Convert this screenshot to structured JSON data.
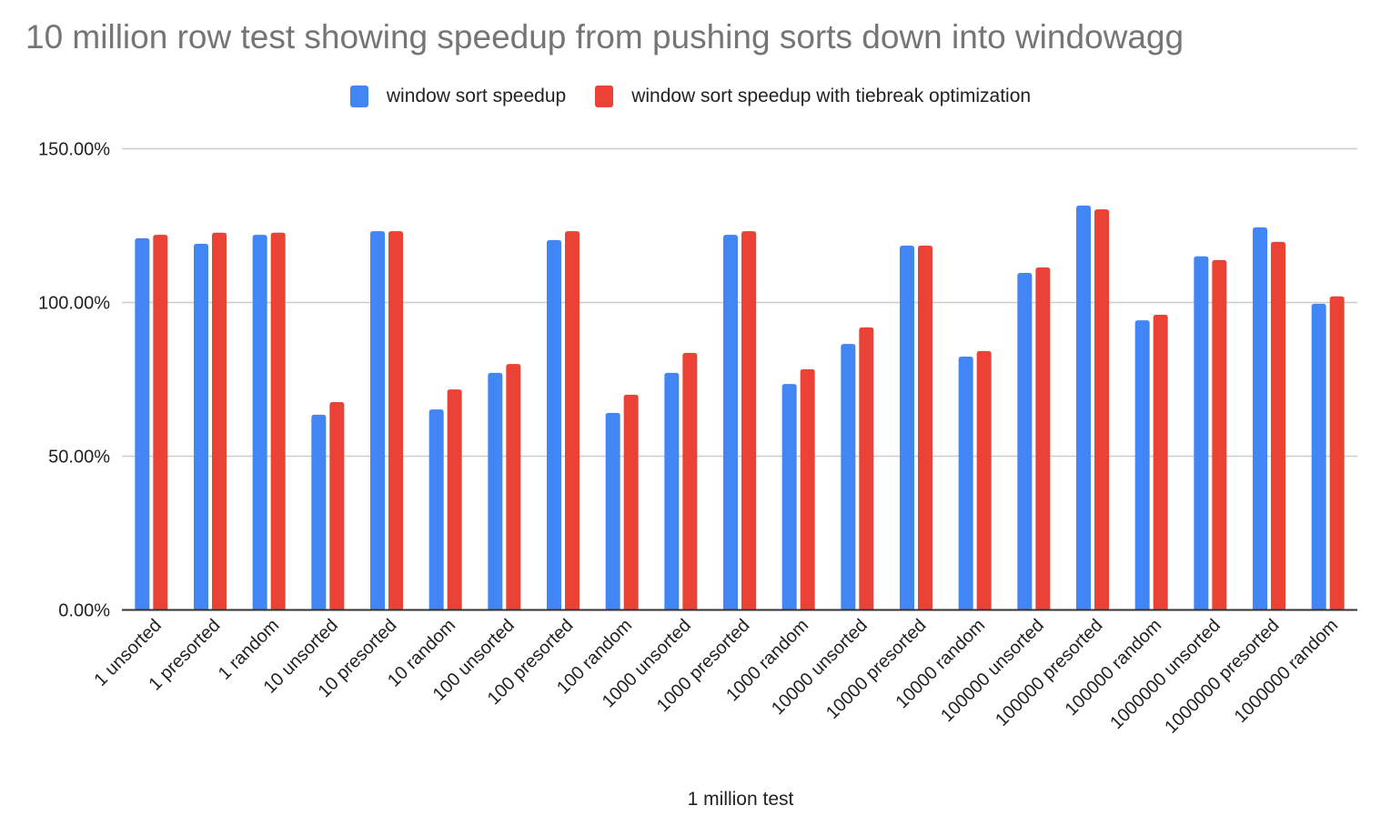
{
  "chart_data": {
    "type": "bar",
    "title": "10 million row test showing speedup from pushing sorts down into windowagg",
    "xlabel": "1 million test",
    "ylabel": "",
    "ylim": [
      0,
      150
    ],
    "yticks": [
      0,
      50,
      100,
      150
    ],
    "ytick_labels": [
      "0.00%",
      "50.00%",
      "100.00%",
      "150.00%"
    ],
    "grid": true,
    "legend_position": "top",
    "categories": [
      "1 unsorted",
      "1 presorted",
      "1 random",
      "10 unsorted",
      "10 presorted",
      "10 random",
      "100 unsorted",
      "100 presorted",
      "100 random",
      "1000 unsorted",
      "1000 presorted",
      "1000 random",
      "10000 unsorted",
      "10000 presorted",
      "10000 random",
      "100000 unsorted",
      "100000 presorted",
      "100000 random",
      "1000000 unsorted",
      "1000000 presorted",
      "1000000 random"
    ],
    "series": [
      {
        "name": "window sort speedup",
        "color": "#4285f4",
        "values": [
          120.9,
          119.1,
          122.0,
          63.5,
          123.2,
          65.2,
          77.1,
          120.3,
          64.1,
          77.1,
          122.0,
          73.5,
          86.5,
          118.5,
          82.4,
          109.6,
          131.5,
          94.2,
          115.0,
          124.4,
          99.6
        ]
      },
      {
        "name": "window sort speedup with tiebreak optimization",
        "color": "#ea4335",
        "values": [
          122.0,
          122.7,
          122.7,
          67.6,
          123.2,
          71.7,
          80.0,
          123.2,
          70.0,
          83.6,
          123.2,
          78.3,
          91.9,
          118.5,
          84.2,
          111.4,
          130.3,
          96.0,
          113.8,
          119.7,
          102.0
        ]
      }
    ]
  }
}
